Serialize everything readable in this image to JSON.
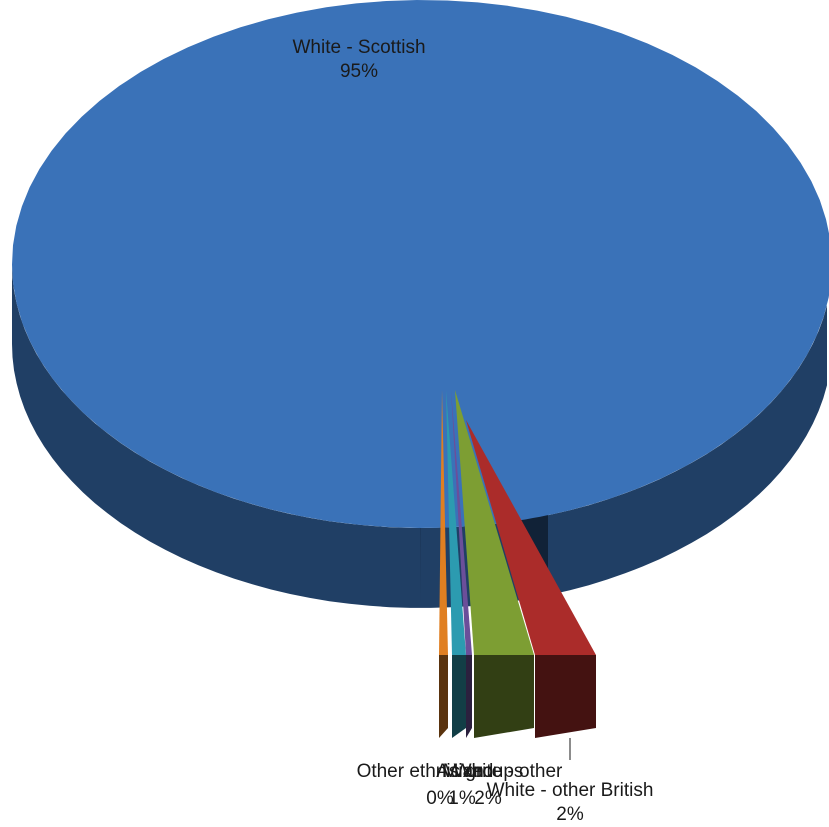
{
  "chart_data": {
    "type": "pie",
    "title": "",
    "exploded_3d": true,
    "slices": [
      {
        "name": "White - Scottish",
        "label": "White - Scottish",
        "percent_label": "95%",
        "value": 95.0,
        "color": "#3a72b8"
      },
      {
        "name": "White - other British",
        "label": "White - other British",
        "percent_label": "2%",
        "value": 2.3,
        "color": "#ab2c2a"
      },
      {
        "name": "White - other",
        "label": "White - other",
        "percent_label": "2%",
        "value": 1.6,
        "color": "#7d9e33"
      },
      {
        "name": "Mixed",
        "label": "Mixed",
        "percent_label": "0%",
        "value": 0.2,
        "color": "#6b4f9a"
      },
      {
        "name": "Asian",
        "label": "Asian",
        "percent_label": "1%",
        "value": 0.5,
        "color": "#2c9bb0"
      },
      {
        "name": "Other ethnic groups",
        "label": "Other ethnic groups",
        "percent_label": "0%",
        "value": 0.4,
        "color": "#e07f22"
      }
    ]
  }
}
